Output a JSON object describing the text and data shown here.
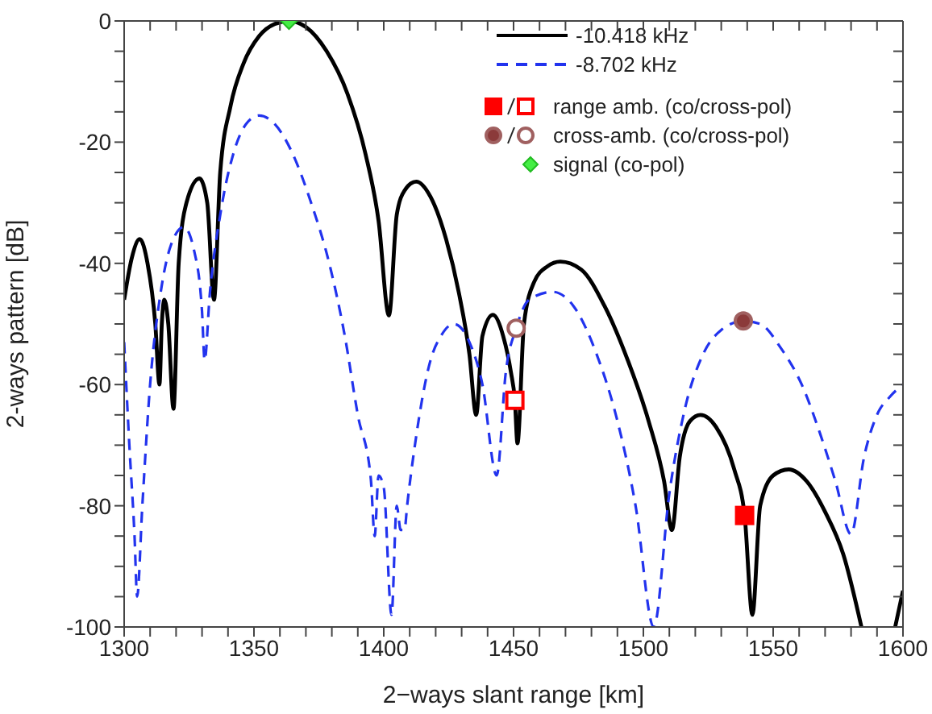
{
  "chart_data": {
    "type": "line",
    "xlabel": "2−ways slant range [km]",
    "ylabel": "2-ways pattern [dB]",
    "xlim": [
      1300,
      1600
    ],
    "ylim": [
      -100,
      0
    ],
    "xticks": [
      1300,
      {
        "value": 1310,
        "label": null
      },
      {
        "value": 1320,
        "label": null
      },
      {
        "value": 1330,
        "label": null
      },
      {
        "value": 1340,
        "label": null
      },
      1350,
      {
        "value": 1360,
        "label": null
      },
      {
        "value": 1370,
        "label": null
      },
      {
        "value": 1380,
        "label": null
      },
      {
        "value": 1390,
        "label": null
      },
      1400,
      {
        "value": 1410,
        "label": null
      },
      {
        "value": 1420,
        "label": null
      },
      {
        "value": 1430,
        "label": null
      },
      {
        "value": 1440,
        "label": null
      },
      1450,
      {
        "value": 1460,
        "label": null
      },
      {
        "value": 1470,
        "label": null
      },
      {
        "value": 1480,
        "label": null
      },
      {
        "value": 1490,
        "label": null
      },
      1500,
      {
        "value": 1510,
        "label": null
      },
      {
        "value": 1520,
        "label": null
      },
      {
        "value": 1530,
        "label": null
      },
      {
        "value": 1540,
        "label": null
      },
      1550,
      {
        "value": 1560,
        "label": null
      },
      {
        "value": 1570,
        "label": null
      },
      {
        "value": 1580,
        "label": null
      },
      {
        "value": 1590,
        "label": null
      },
      1600
    ],
    "yticks": [
      -100,
      {
        "value": -95,
        "label": null
      },
      {
        "value": -90,
        "label": null
      },
      {
        "value": -85,
        "label": null
      },
      -80,
      {
        "value": -75,
        "label": null
      },
      {
        "value": -70,
        "label": null
      },
      {
        "value": -65,
        "label": null
      },
      -60,
      {
        "value": -55,
        "label": null
      },
      {
        "value": -50,
        "label": null
      },
      {
        "value": -45,
        "label": null
      },
      -40,
      {
        "value": -35,
        "label": null
      },
      {
        "value": -30,
        "label": null
      },
      {
        "value": -25,
        "label": null
      },
      -20,
      {
        "value": -15,
        "label": null
      },
      {
        "value": -10,
        "label": null
      },
      {
        "value": -5,
        "label": null
      },
      0
    ],
    "legend": "top right",
    "marker": "none",
    "series": [
      {
        "name": "-10.418 kHz",
        "color": "#000000",
        "line_style": "solid",
        "x": [
          1300,
          1303,
          1306,
          1309,
          1312,
          1313.6,
          1314.5,
          1315.5,
          1317,
          1319,
          1321,
          1324,
          1329,
          1332,
          1334.6,
          1337,
          1341,
          1346,
          1352,
          1358,
          1363.5,
          1370,
          1378,
          1386,
          1393,
          1398,
          1402,
          1405,
          1408,
          1412.5,
          1418,
          1424,
          1429,
          1433,
          1435.6,
          1438,
          1442,
          1446,
          1449,
          1450.5,
          1451.5,
          1454,
          1458,
          1463,
          1468,
          1476,
          1485,
          1494,
          1502,
          1508,
          1511,
          1514,
          1518,
          1522,
          1528,
          1535,
          1539,
          1542,
          1545,
          1550,
          1556,
          1563,
          1570,
          1577,
          1584,
          1590,
          1597,
          1600
        ],
        "values": [
          -46,
          -39,
          -36,
          -40,
          -50,
          -60,
          -50,
          -46,
          -50,
          -64,
          -40,
          -30,
          -26,
          -30,
          -46,
          -25,
          -14,
          -7,
          -2.5,
          -0.5,
          0,
          -1,
          -5,
          -12,
          -22,
          -33,
          -48.6,
          -32,
          -28,
          -26.5,
          -29,
          -36,
          -45,
          -55,
          -65,
          -52,
          -48.5,
          -52,
          -58,
          -62.6,
          -69.7,
          -50,
          -43,
          -40.5,
          -39.7,
          -41,
          -47,
          -56,
          -66,
          -76,
          -84,
          -72,
          -66,
          -65,
          -67,
          -74,
          -81.6,
          -98,
          -80,
          -75,
          -74,
          -76,
          -81,
          -88,
          -100,
          null,
          -100,
          -94
        ]
      },
      {
        "name": "-8.702 kHz",
        "color": "#2233ee",
        "line_style": "dashed",
        "x": [
          1300,
          1302,
          1304,
          1305,
          1307,
          1310,
          1314,
          1318,
          1323,
          1327,
          1330,
          1331,
          1333,
          1337,
          1342,
          1347,
          1352,
          1358,
          1365,
          1372,
          1379,
          1385,
          1390,
          1395,
          1396.5,
          1398,
          1400,
          1403,
          1405,
          1406.5,
          1408,
          1409,
          1412,
          1418,
          1422,
          1427,
          1433,
          1438,
          1443.5,
          1447,
          1451,
          1456,
          1465,
          1473,
          1482,
          1490,
          1497,
          1504,
          1510,
          1516,
          1523,
          1530,
          1538.5,
          1545,
          1553,
          1561,
          1568,
          1574,
          1580,
          1585,
          1590,
          1595,
          1600
        ],
        "values": [
          -53,
          -70,
          -85,
          -95,
          -80,
          -60,
          -45,
          -37,
          -34,
          -38,
          -48,
          -56,
          -45,
          -32,
          -22,
          -17,
          -15.6,
          -17,
          -22,
          -30,
          -40,
          -52,
          -65,
          -75.5,
          -85,
          -75,
          -77,
          -98,
          -80,
          -84,
          -84,
          -80,
          -70,
          -56,
          -52,
          -50,
          -53,
          -60,
          -75,
          -58,
          -50.7,
          -46,
          -44.7,
          -47,
          -55,
          -66,
          -80,
          -100,
          -78,
          -64,
          -55,
          -51,
          -49.5,
          -50,
          -54,
          -60,
          -68,
          -76,
          -84.7,
          -72,
          -65,
          -62,
          -60
        ]
      },
      {
        "name": "range amb. (co/cross-pol)",
        "type": "scatter",
        "marker": "square",
        "color": "#ff0000",
        "colors": [
          "#ff0000",
          "#ffffff"
        ],
        "x": [
          1539,
          1450.5
        ],
        "values": [
          -81.6,
          -62.6
        ]
      },
      {
        "name": "cross-amb.  (co/cross-pol)",
        "type": "scatter",
        "marker": "circle",
        "color": "#a06060",
        "colors": [
          "#8b3a3a",
          "#ffffff"
        ],
        "x": [
          1538.5,
          1451
        ],
        "values": [
          -49.5,
          -50.7
        ]
      },
      {
        "name": "signal (co-pol)",
        "type": "scatter",
        "marker": "diamond",
        "color": "#22bb22",
        "colors": [
          "#44ee44"
        ],
        "x": [
          1363.5
        ],
        "values": [
          0
        ]
      }
    ]
  }
}
